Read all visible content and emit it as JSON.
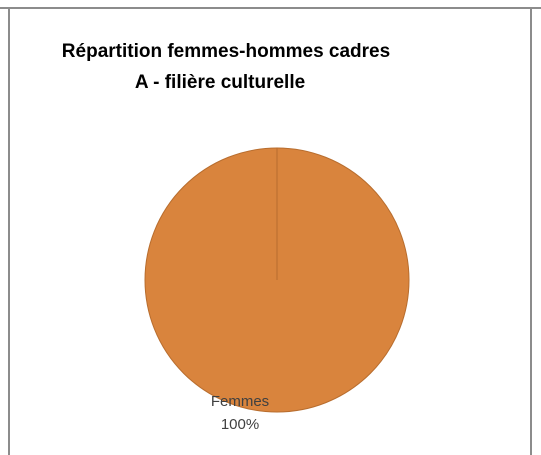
{
  "chart_data": {
    "type": "pie",
    "title": [
      "Répartition femmes-hommes cadres",
      "A - filière culturelle"
    ],
    "categories": [
      "Femmes"
    ],
    "values": [
      100
    ],
    "value_labels": [
      "100%"
    ],
    "colors": [
      "#d9843d"
    ]
  }
}
